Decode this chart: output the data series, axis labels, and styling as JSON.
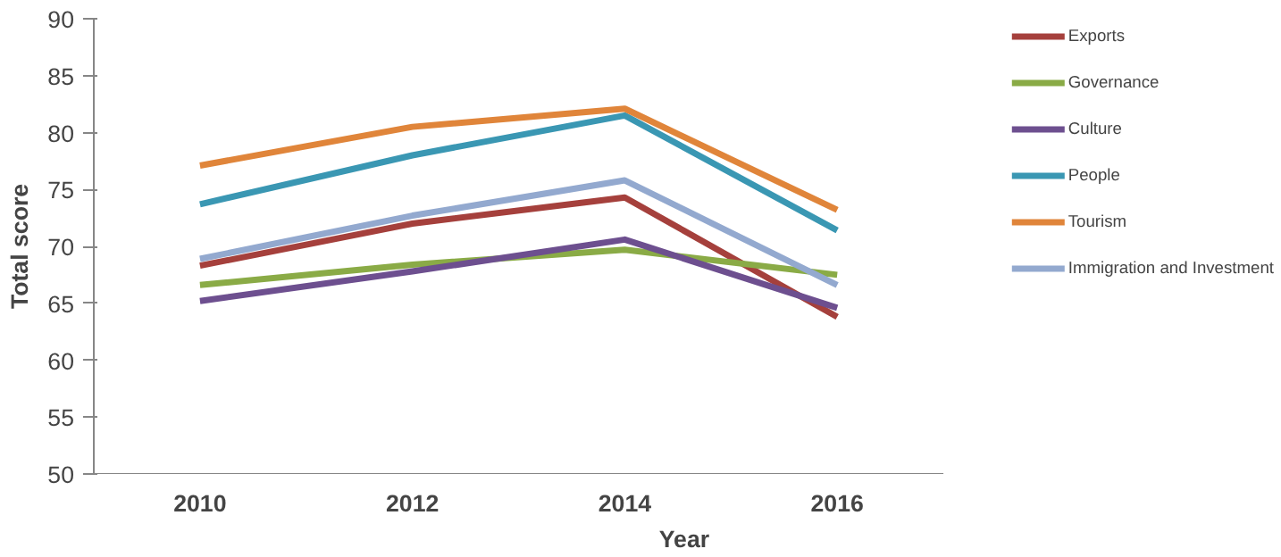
{
  "chart_data": {
    "type": "line",
    "xlabel": "Year",
    "ylabel": "Total score",
    "categories": [
      "2010",
      "2012",
      "2014",
      "2016"
    ],
    "ylim": [
      50,
      90
    ],
    "yticks": [
      50,
      55,
      60,
      65,
      70,
      75,
      80,
      85,
      90
    ],
    "grid": false,
    "legend": "right",
    "marker": "none",
    "line_style": "solid",
    "series": [
      {
        "name": "Exports",
        "color": "#a5403c",
        "values": [
          68.3,
          72.0,
          74.3,
          63.8
        ]
      },
      {
        "name": "Governance",
        "color": "#8aab46",
        "values": [
          66.6,
          68.4,
          69.7,
          67.5
        ]
      },
      {
        "name": "Culture",
        "color": "#6d4f8f",
        "values": [
          65.2,
          67.8,
          70.6,
          64.6
        ]
      },
      {
        "name": "People",
        "color": "#3a97b3",
        "values": [
          73.7,
          78.0,
          81.5,
          71.4
        ]
      },
      {
        "name": "Tourism",
        "color": "#e0853a",
        "values": [
          77.1,
          80.5,
          82.1,
          73.2
        ]
      },
      {
        "name": "Immigration and Investment",
        "color": "#93a9cf",
        "values": [
          68.9,
          72.7,
          75.8,
          66.6
        ]
      }
    ]
  }
}
